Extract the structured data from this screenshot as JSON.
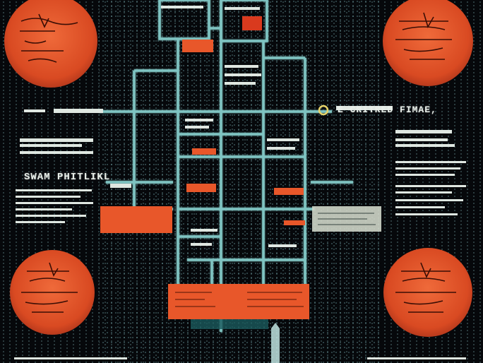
{
  "colors": {
    "background": "#06080b",
    "conduit": "#7fc4c2",
    "orange": "#e8572a",
    "panel_light": "#cfd6c8",
    "text": "#e8efe9"
  },
  "labels": {
    "left_heading": "SWAM PHITLIKL",
    "right_heading": "E CRITRED FIMAE,"
  }
}
